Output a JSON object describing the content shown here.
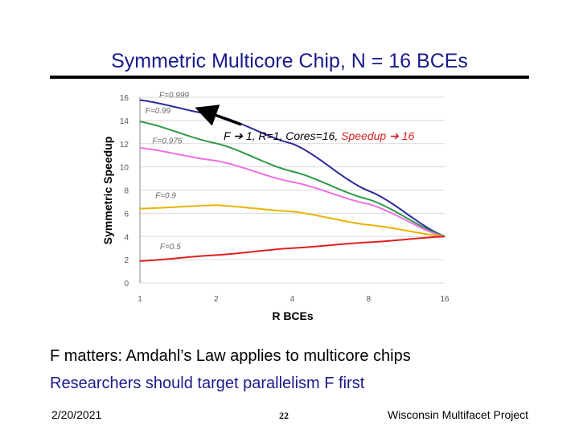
{
  "slide": {
    "title": "Symmetric Multicore Chip, N = 16 BCEs",
    "bullet1": "F matters: Amdahl’s Law applies to multicore chips",
    "bullet2": "Researchers should target parallelism F first",
    "footer_date": "2/20/2021",
    "footer_page": "22",
    "footer_project": "Wisconsin Multifacet Project",
    "colors": {
      "title": "#1a1a8c",
      "highlight": "#d42020"
    }
  },
  "chart_data": {
    "type": "line",
    "title": "",
    "xlabel": "R BCEs",
    "ylabel": "Symmetric Speedup",
    "x": [
      1,
      2,
      4,
      8,
      16
    ],
    "x_tick_labels": [
      "1",
      "2",
      "4",
      "8",
      "16"
    ],
    "x_scale": "log2",
    "ylim": [
      0,
      16
    ],
    "y_ticks": [
      0,
      2,
      4,
      6,
      8,
      10,
      12,
      14,
      16
    ],
    "grid": "horizontal",
    "series": [
      {
        "name": "F=0.999",
        "color": "#2b2b9a",
        "values": [
          15.76,
          14.44,
          12.0,
          7.94,
          4.0
        ]
      },
      {
        "name": "F=0.99",
        "color": "#2e9a48",
        "values": [
          13.91,
          12.03,
          9.6,
          7.2,
          4.0
        ]
      },
      {
        "name": "F=0.975",
        "color": "#ee6fe4",
        "values": [
          11.64,
          10.53,
          8.7,
          6.8,
          3.95
        ]
      },
      {
        "name": "F=0.9",
        "color": "#e8b400",
        "values": [
          6.4,
          6.7,
          6.15,
          5.0,
          4.0
        ]
      },
      {
        "name": "F=0.5",
        "color": "#e02020",
        "values": [
          1.88,
          2.4,
          3.0,
          3.5,
          4.0
        ]
      }
    ],
    "annotation": {
      "prefix": "F",
      "arrow1": "➔",
      "middle": "1, R=1, Cores=16, ",
      "speedup": "Speedup",
      "arrow2": "➔",
      "suffix": "16"
    }
  }
}
